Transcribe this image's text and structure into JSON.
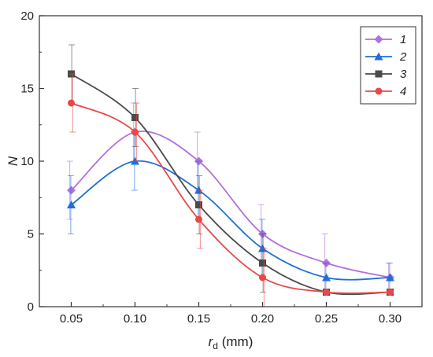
{
  "chart_data": {
    "type": "line",
    "title": "",
    "xlabel": "r",
    "xlabel_subscript": "d",
    "xlabel_unit": " (mm)",
    "ylabel": "N",
    "x": [
      0.05,
      0.1,
      0.15,
      0.2,
      0.25,
      0.3
    ],
    "x_tick_labels": [
      "0.05",
      "0.10",
      "0.15",
      "0.20",
      "0.25",
      "0.30"
    ],
    "y_ticks": [
      0,
      5,
      10,
      15,
      20
    ],
    "y_tick_labels": [
      "0",
      "5",
      "10",
      "15",
      "20"
    ],
    "xlim": [
      0.025,
      0.325
    ],
    "ylim": [
      0,
      20
    ],
    "grid": false,
    "legend_position": "top-right",
    "series": [
      {
        "name": "1",
        "color": "#B070E0",
        "marker": "diamond",
        "values": [
          8,
          12,
          10,
          5,
          3,
          2
        ],
        "error": [
          2,
          2,
          2,
          2,
          2,
          1
        ]
      },
      {
        "name": "2",
        "color": "#1F6FD6",
        "marker": "triangle",
        "values": [
          7,
          10,
          8,
          4,
          2,
          2
        ],
        "error": [
          2,
          2,
          2,
          2,
          1,
          1
        ]
      },
      {
        "name": "3",
        "color": "#4A4A4A",
        "marker": "square",
        "values": [
          16,
          13,
          7,
          3,
          1,
          1
        ],
        "error": [
          2,
          2,
          2,
          2,
          0,
          0
        ]
      },
      {
        "name": "4",
        "color": "#E84848",
        "marker": "circle",
        "values": [
          14,
          12,
          6,
          2,
          1,
          1
        ],
        "error": [
          2,
          2,
          2,
          2,
          0,
          0
        ]
      }
    ]
  }
}
